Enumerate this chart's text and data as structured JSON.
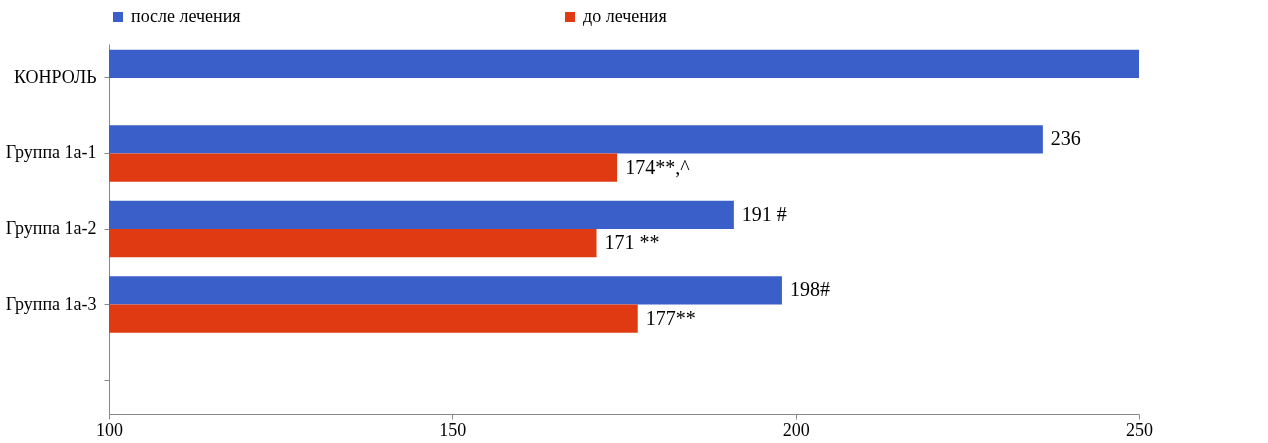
{
  "chart_data": {
    "type": "bar",
    "orientation": "horizontal",
    "categories": [
      "КОНРОЛЬ",
      "Группа 1а-1",
      "Группа 1а-2",
      "Группа 1а-3",
      null
    ],
    "series": [
      {
        "name": "после лечения",
        "color": "#3a5fc8",
        "values": [
          250,
          236,
          191,
          198,
          null
        ],
        "value_labels": [
          null,
          "236",
          "191 #",
          "198#",
          null
        ]
      },
      {
        "name": "до лечения",
        "color": "#e03a12",
        "values": [
          null,
          174,
          171,
          177,
          null
        ],
        "value_labels": [
          null,
          "174**,^",
          "171 **",
          "177**",
          null
        ]
      }
    ],
    "xlim": [
      100,
      250
    ],
    "xticks": [
      100,
      150,
      200,
      250
    ],
    "grid": false,
    "legend": "top"
  }
}
